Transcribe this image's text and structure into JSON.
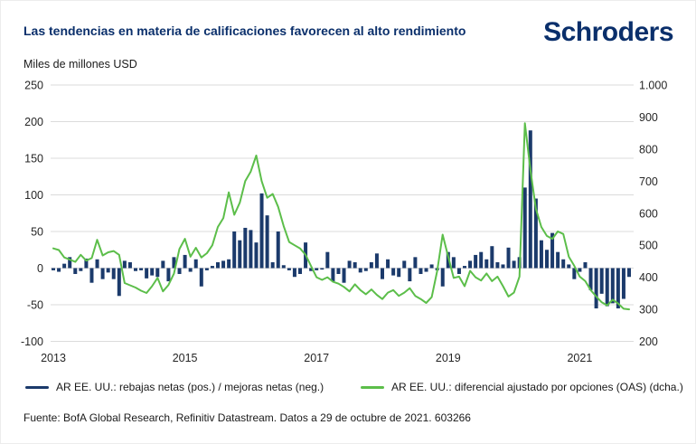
{
  "header": {
    "title": "Las tendencias en materia de calificaciones favorecen al alto rendimiento",
    "logo_text": "Schroders"
  },
  "colors": {
    "brand_navy": "#0A2F6B",
    "bar_navy": "#1B3A6B",
    "line_green": "#5CBE4A",
    "grid": "#DBDBDB",
    "axis_text": "#262626"
  },
  "legend": {
    "items": [
      {
        "label": "AR EE. UU.: rebajas netas (pos.) / mejoras netas (neg.)",
        "color": "#1B3A6B"
      },
      {
        "label": "AR EE. UU.: diferencial ajustado por opciones (OAS) (dcha.)",
        "color": "#5CBE4A"
      }
    ]
  },
  "footer": {
    "source": "Fuente: BofA Global Research, Refinitiv Datastream. Datos a 29 de octubre de 2021. 603266"
  },
  "chart_data": {
    "type": "combo_bar_line",
    "title": "Las tendencias en materia de calificaciones favorecen al alto rendimiento",
    "frequency": "monthly",
    "grid": true,
    "legend_position": "bottom",
    "left_axis": {
      "title": "Miles de millones USD",
      "min": -100,
      "max": 250,
      "ticks": [
        250,
        200,
        150,
        100,
        50,
        0,
        -50,
        -100
      ]
    },
    "right_axis": {
      "min": 200,
      "max": 1000,
      "tick_labels": [
        "1.000",
        "900",
        "800",
        "700",
        "600",
        "500",
        "400",
        "300",
        "200"
      ]
    },
    "x_axis": {
      "tick_labels": [
        "2013",
        "2015",
        "2017",
        "2019",
        "2021"
      ],
      "range": [
        "2013-01",
        "2021-10"
      ]
    },
    "months": [
      "2013-01",
      "2013-02",
      "2013-03",
      "2013-04",
      "2013-05",
      "2013-06",
      "2013-07",
      "2013-08",
      "2013-09",
      "2013-10",
      "2013-11",
      "2013-12",
      "2014-01",
      "2014-02",
      "2014-03",
      "2014-04",
      "2014-05",
      "2014-06",
      "2014-07",
      "2014-08",
      "2014-09",
      "2014-10",
      "2014-11",
      "2014-12",
      "2015-01",
      "2015-02",
      "2015-03",
      "2015-04",
      "2015-05",
      "2015-06",
      "2015-07",
      "2015-08",
      "2015-09",
      "2015-10",
      "2015-11",
      "2015-12",
      "2016-01",
      "2016-02",
      "2016-03",
      "2016-04",
      "2016-05",
      "2016-06",
      "2016-07",
      "2016-08",
      "2016-09",
      "2016-10",
      "2016-11",
      "2016-12",
      "2017-01",
      "2017-02",
      "2017-03",
      "2017-04",
      "2017-05",
      "2017-06",
      "2017-07",
      "2017-08",
      "2017-09",
      "2017-10",
      "2017-11",
      "2017-12",
      "2018-01",
      "2018-02",
      "2018-03",
      "2018-04",
      "2018-05",
      "2018-06",
      "2018-07",
      "2018-08",
      "2018-09",
      "2018-10",
      "2018-11",
      "2018-12",
      "2019-01",
      "2019-02",
      "2019-03",
      "2019-04",
      "2019-05",
      "2019-06",
      "2019-07",
      "2019-08",
      "2019-09",
      "2019-10",
      "2019-11",
      "2019-12",
      "2020-01",
      "2020-02",
      "2020-03",
      "2020-04",
      "2020-05",
      "2020-06",
      "2020-07",
      "2020-08",
      "2020-09",
      "2020-10",
      "2020-11",
      "2020-12",
      "2021-01",
      "2021-02",
      "2021-03",
      "2021-04",
      "2021-05",
      "2021-06",
      "2021-07",
      "2021-08",
      "2021-09",
      "2021-10"
    ],
    "series": [
      {
        "name": "AR EE. UU.: rebajas netas (pos.) / mejoras netas (neg.)",
        "type": "bar",
        "axis": "left",
        "unit": "miles de millones USD",
        "color": "#1B3A6B",
        "values": [
          -3,
          -5,
          6,
          15,
          -8,
          -4,
          13,
          -20,
          12,
          -15,
          -6,
          -15,
          -38,
          10,
          8,
          -4,
          -3,
          -14,
          -10,
          -12,
          10,
          -18,
          15,
          -8,
          18,
          -5,
          12,
          -25,
          -3,
          3,
          8,
          10,
          12,
          50,
          38,
          55,
          52,
          35,
          102,
          72,
          8,
          50,
          4,
          -3,
          -12,
          -8,
          35,
          -4,
          -3,
          -2,
          22,
          -18,
          -8,
          -20,
          10,
          8,
          -6,
          -4,
          8,
          20,
          -15,
          12,
          -10,
          -12,
          10,
          -18,
          15,
          -8,
          -5,
          5,
          -3,
          -25,
          22,
          15,
          -8,
          3,
          10,
          18,
          22,
          12,
          30,
          8,
          5,
          28,
          10,
          15,
          110,
          188,
          95,
          38,
          25,
          48,
          22,
          12,
          5,
          -15,
          -5,
          8,
          -30,
          -55,
          -35,
          -52,
          -48,
          -55,
          -42,
          -12
        ]
      },
      {
        "name": "AR EE. UU.: diferencial ajustado por opciones (OAS) (dcha.)",
        "type": "line",
        "axis": "right",
        "unit": "pb",
        "color": "#5CBE4A",
        "values": [
          490,
          485,
          462,
          455,
          448,
          470,
          452,
          460,
          517,
          468,
          478,
          482,
          470,
          382,
          375,
          368,
          358,
          351,
          372,
          398,
          356,
          376,
          412,
          488,
          520,
          464,
          492,
          462,
          475,
          500,
          557,
          585,
          665,
          595,
          633,
          700,
          730,
          780,
          700,
          648,
          660,
          620,
          560,
          510,
          500,
          490,
          470,
          435,
          400,
          392,
          400,
          386,
          380,
          370,
          356,
          378,
          360,
          347,
          362,
          345,
          332,
          352,
          360,
          342,
          352,
          366,
          342,
          332,
          320,
          338,
          420,
          533,
          465,
          398,
          402,
          372,
          420,
          400,
          390,
          412,
          388,
          402,
          372,
          340,
          352,
          402,
          881,
          735,
          613,
          557,
          529,
          520,
          543,
          535,
          464,
          436,
          402,
          388,
          360,
          340,
          322,
          312,
          330,
          318,
          302,
          300
        ]
      }
    ]
  }
}
